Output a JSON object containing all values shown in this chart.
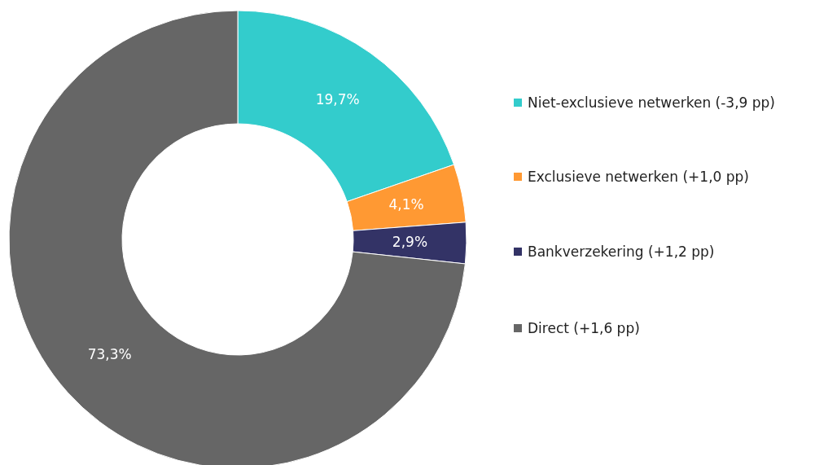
{
  "chart_data": {
    "type": "donut",
    "categories": [
      "Niet-exclusieve netwerken (-3,9 pp)",
      "Exclusieve netwerken (+1,0 pp)",
      "Bankverzekering (+1,2 pp)",
      "Direct (+1,6 pp)"
    ],
    "values": [
      19.7,
      4.1,
      2.9,
      73.3
    ],
    "colors": [
      "#33cccc",
      "#ff9933",
      "#333366",
      "#666666"
    ],
    "value_labels": [
      "19,7%",
      "4,1%",
      "2,9%",
      "73,3%"
    ],
    "legend": "right"
  }
}
